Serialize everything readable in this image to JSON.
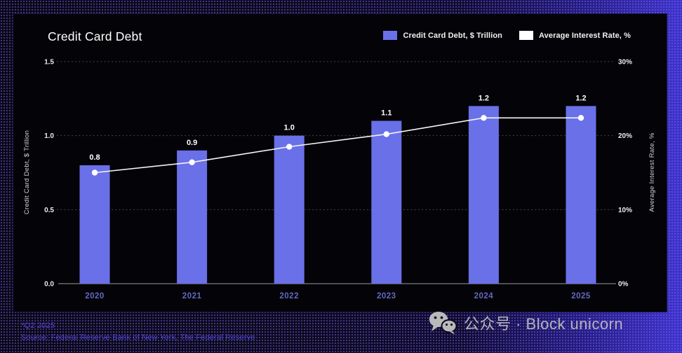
{
  "header": {
    "title": "Credit Card Debt"
  },
  "legend": {
    "items": [
      {
        "label": "Credit Card Debt, $ Trillion",
        "color": "#6A70E8"
      },
      {
        "label": "Average Interest Rate, %",
        "color": "#FFFFFF"
      }
    ]
  },
  "chart_data": {
    "type": "bar",
    "title": "Credit Card Debt",
    "categories": [
      "2020",
      "2021",
      "2022",
      "2023",
      "2024",
      "2025"
    ],
    "series": [
      {
        "name": "Credit Card Debt, $ Trillion",
        "type": "bar",
        "axis": "left",
        "color": "#6A70E8",
        "values": [
          0.8,
          0.9,
          1.0,
          1.1,
          1.2,
          1.2
        ],
        "labels": [
          "0.8",
          "0.9",
          "1.0",
          "1.1",
          "1.2",
          "1.2"
        ]
      },
      {
        "name": "Average Interest Rate, %",
        "type": "line",
        "axis": "right",
        "color": "#F4F4F4",
        "marker_color": "#FFFFFF",
        "values": [
          15.0,
          16.4,
          18.5,
          20.2,
          22.4,
          22.4
        ]
      }
    ],
    "left_axis": {
      "label": "Credit Card Debt, $ Trillion",
      "min": 0,
      "max": 1.5,
      "ticks": [
        "0.0",
        "0.5",
        "1.0",
        "1.5"
      ]
    },
    "right_axis": {
      "label": "Average Interest Rate, %",
      "min": 0,
      "max": 30,
      "ticks": [
        "0%",
        "10%",
        "20%",
        "30%"
      ]
    },
    "grid": "dashed horizontal",
    "legend_position": "top-right"
  },
  "footer": {
    "note": "*Q2 2025",
    "source": "Source: Federal Reserve Bank of New York, The Federal Reserve"
  },
  "branding": {
    "text": "公众号 · Block unicorn",
    "icon": "wechat-icon"
  }
}
